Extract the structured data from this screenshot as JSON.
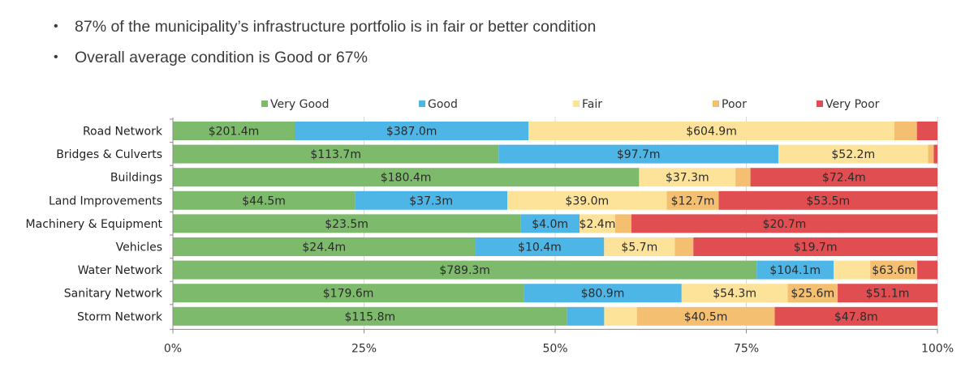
{
  "bullets": [
    "87% of the municipality’s infrastructure portfolio is in fair or better condition",
    "Overall average condition is Good or 67%"
  ],
  "bullet_glyph": "•",
  "chart_data": {
    "type": "bar",
    "orientation": "horizontal",
    "stacked": "percent",
    "title": "",
    "xlabel": "",
    "ylabel": "",
    "xlim": [
      0,
      100
    ],
    "x_ticks": [
      "0%",
      "25%",
      "50%",
      "75%",
      "100%"
    ],
    "grid": true,
    "legend_position": "top",
    "value_unit": "$ millions",
    "categories": [
      "Road Network",
      "Bridges & Culverts",
      "Buildings",
      "Land Improvements",
      "Machinery & Equipment",
      "Vehicles",
      "Water Network",
      "Sanitary Network",
      "Storm Network"
    ],
    "series": [
      {
        "name": "Very Good",
        "color": "#7dba6b",
        "values": [
          201.4,
          113.7,
          180.4,
          44.5,
          23.5,
          24.4,
          789.3,
          179.6,
          115.8
        ],
        "labels": [
          "$201.4m",
          "$113.7m",
          "$180.4m",
          "$44.5m",
          "$23.5m",
          "$24.4m",
          "$789.3m",
          "$179.6m",
          "$115.8m"
        ]
      },
      {
        "name": "Good",
        "color": "#4db6e6",
        "values": [
          387.0,
          97.7,
          0.1,
          37.3,
          4.0,
          10.4,
          104.1,
          80.9,
          10.9
        ],
        "labels": [
          "$387.0m",
          "$97.7m",
          "",
          "$37.3m",
          "$4.0m",
          "$10.4m",
          "$104.1m",
          "$80.9m",
          ""
        ]
      },
      {
        "name": "Fair",
        "color": "#fde39a",
        "values": [
          604.9,
          52.2,
          37.3,
          39.0,
          2.4,
          5.7,
          49.3,
          54.3,
          9.6
        ],
        "labels": [
          "$604.9m",
          "$52.2m",
          "$37.3m",
          "$39.0m",
          "$2.4m",
          "$5.7m",
          "",
          "$54.3m",
          ""
        ]
      },
      {
        "name": "Poor",
        "color": "#f5bf71",
        "values": [
          37.4,
          2.0,
          5.8,
          12.7,
          1.1,
          1.5,
          63.6,
          25.6,
          40.5
        ],
        "labels": [
          "",
          "",
          "",
          "$12.7m",
          "",
          "",
          "$63.6m",
          "$25.6m",
          "$40.5m"
        ]
      },
      {
        "name": "Very Poor",
        "color": "#e04e51",
        "values": [
          34.0,
          1.3,
          72.4,
          53.5,
          20.7,
          19.7,
          27.4,
          51.1,
          47.8
        ],
        "labels": [
          "",
          "",
          "$72.4m",
          "$53.5m",
          "$20.7m",
          "$19.7m",
          "",
          "$51.1m",
          "$47.8m"
        ]
      }
    ]
  }
}
